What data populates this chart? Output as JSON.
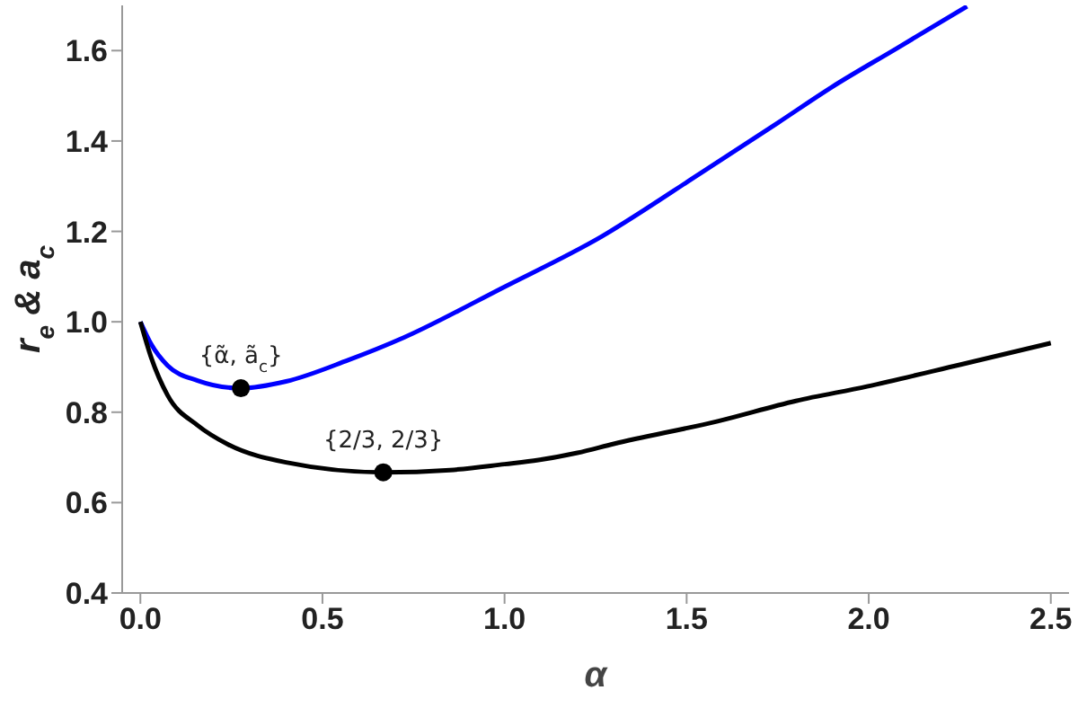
{
  "chart_data": {
    "type": "line",
    "xlabel": "α",
    "ylabel": "r$_{e}$ & a$_{c}$",
    "xlim": [
      -0.05,
      2.55
    ],
    "ylim": [
      0.4,
      1.7
    ],
    "xticks": [
      {
        "value": 0,
        "label": "0.0"
      },
      0.5,
      {
        "value": 1,
        "label": "1.0"
      },
      1.5,
      {
        "value": 2,
        "label": "2.0"
      },
      2.5
    ],
    "yticks": [
      0.4,
      0.6,
      0.8,
      {
        "value": 1,
        "label": "1.0"
      },
      1.2,
      1.4,
      1.6
    ],
    "grid": false,
    "marker": "none",
    "line_style": "solid",
    "series": [
      {
        "color": "#0000ff",
        "x": [
          0.0,
          0.03,
          0.075,
          0.157,
          0.276,
          0.4,
          0.57,
          0.723,
          0.994,
          1.265,
          1.535,
          1.75,
          1.9,
          2.077,
          2.27
        ],
        "values": [
          1.0,
          0.95,
          0.903,
          0.87,
          0.853,
          0.868,
          0.915,
          0.965,
          1.075,
          1.188,
          1.327,
          1.44,
          1.52,
          1.605,
          1.698
        ]
      },
      {
        "color": "#000000",
        "x": [
          0.0,
          0.03,
          0.075,
          0.157,
          0.24,
          0.4,
          0.667,
          0.85,
          1.0,
          1.093,
          1.2,
          1.3,
          1.585,
          1.8,
          1.995,
          2.25,
          2.5
        ],
        "values": [
          1.0,
          0.92,
          0.837,
          0.771,
          0.729,
          0.689,
          0.667,
          0.672,
          0.685,
          0.694,
          0.71,
          0.73,
          0.78,
          0.825,
          0.857,
          0.905,
          0.953
        ]
      },
      {
        "type": "scatter",
        "color": "#000000",
        "marker": "circle",
        "x": [
          0.276,
          0.667
        ],
        "values": [
          0.853,
          0.667
        ]
      }
    ],
    "annotations": [
      {
        "text": "{α̃, ã$_{c}$}",
        "x": 0.276,
        "y": 0.853
      },
      {
        "text": "{2/3, 2/3}",
        "x": 0.667,
        "y": 0.667
      }
    ]
  }
}
